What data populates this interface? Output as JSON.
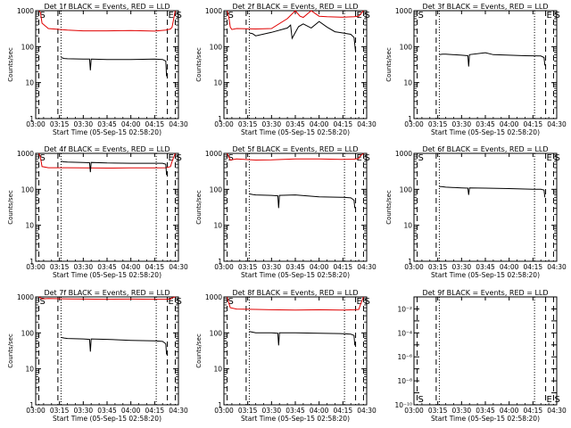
{
  "figure": {
    "background": "#ffffff",
    "black": "#000000",
    "red": "#e00000"
  },
  "chart_data": [
    {
      "type": "line",
      "title": "Det 1f BLACK = Events, RED = LLD",
      "xlabel": "Start Time (05-Sep-15 02:58:20)",
      "ylabel": "Counts/sec",
      "yscale": "log",
      "ylim": [
        1,
        1000
      ],
      "yticks": [
        "1",
        "10",
        "100",
        "1000"
      ],
      "xticks": [
        "03:00",
        "03:15",
        "03:30",
        "03:45",
        "04:00",
        "04:15",
        "04:30"
      ],
      "markers": [
        "S",
        "E",
        "S"
      ],
      "series": [
        {
          "color": "#e00000",
          "x": [
            2,
            3,
            4,
            8,
            20,
            30,
            45,
            60,
            75,
            82,
            85,
            86,
            88
          ],
          "y": [
            1000,
            900,
            450,
            320,
            290,
            275,
            275,
            280,
            270,
            290,
            310,
            350,
            1000
          ]
        },
        {
          "color": "#000000",
          "x": [
            16,
            18,
            20,
            30,
            34,
            34.5,
            35,
            45,
            60,
            75,
            80,
            82,
            82.5
          ],
          "y": [
            50,
            47,
            46,
            45,
            45,
            22,
            45,
            44,
            44,
            45,
            44,
            40,
            15
          ]
        }
      ]
    },
    {
      "type": "line",
      "title": "Det 2f BLACK = Events, RED = LLD",
      "xlabel": "Start Time (05-Sep-15 02:58:20)",
      "ylabel": "Counts/sec",
      "yscale": "log",
      "ylim": [
        1,
        1000
      ],
      "yticks": [
        "1",
        "10",
        "100",
        "1000"
      ],
      "xticks": [
        "03:00",
        "03:15",
        "03:30",
        "03:45",
        "04:00",
        "04:15",
        "04:30"
      ],
      "markers": [
        "S",
        "E",
        "S"
      ],
      "series": [
        {
          "color": "#e00000",
          "x": [
            2,
            3,
            4,
            5,
            8,
            20,
            30,
            40,
            45,
            48,
            50,
            55,
            60,
            65,
            75,
            82,
            85,
            88
          ],
          "y": [
            1000,
            700,
            350,
            300,
            320,
            310,
            320,
            600,
            1000,
            700,
            650,
            1100,
            700,
            680,
            660,
            680,
            700,
            1000
          ]
        },
        {
          "color": "#000000",
          "x": [
            16,
            18,
            20,
            30,
            40,
            42,
            43,
            47,
            50,
            55,
            60,
            65,
            70,
            75,
            80,
            82,
            83
          ],
          "y": [
            240,
            230,
            200,
            250,
            330,
            400,
            170,
            360,
            430,
            330,
            500,
            350,
            260,
            240,
            220,
            180,
            70
          ]
        }
      ]
    },
    {
      "type": "line",
      "title": "Det 3f BLACK = Events, RED = LLD",
      "xlabel": "Start Time (05-Sep-15 02:58:20)",
      "ylabel": "Counts/sec",
      "yscale": "log",
      "ylim": [
        1,
        1000
      ],
      "yticks": [
        "1",
        "10",
        "100",
        "1000"
      ],
      "xticks": [
        "03:00",
        "03:15",
        "03:30",
        "03:45",
        "04:00",
        "04:15",
        "04:30"
      ],
      "markers": [
        "S",
        "E",
        "S"
      ],
      "series": [
        {
          "color": "#000000",
          "x": [
            16,
            18,
            20,
            30,
            34,
            34.5,
            35,
            45,
            50,
            60,
            70,
            80,
            82,
            82.5
          ],
          "y": [
            60,
            62,
            62,
            58,
            56,
            28,
            60,
            68,
            60,
            58,
            56,
            55,
            50,
            30
          ]
        }
      ]
    },
    {
      "type": "line",
      "title": "Det 4f BLACK = Events, RED = LLD",
      "xlabel": "Start Time (05-Sep-15 02:58:20)",
      "ylabel": "Counts/sec",
      "yscale": "log",
      "ylim": [
        1,
        1000
      ],
      "yticks": [
        "1",
        "10",
        "100",
        "1000"
      ],
      "xticks": [
        "03:00",
        "03:15",
        "03:30",
        "03:45",
        "04:00",
        "04:15",
        "04:30"
      ],
      "markers": [
        "S",
        "E",
        "S"
      ],
      "series": [
        {
          "color": "#e00000",
          "x": [
            2,
            3,
            4,
            8,
            20,
            30,
            45,
            60,
            75,
            82,
            85,
            86,
            88
          ],
          "y": [
            1000,
            800,
            430,
            400,
            400,
            395,
            390,
            395,
            395,
            400,
            430,
            600,
            1000
          ]
        },
        {
          "color": "#000000",
          "x": [
            16,
            18,
            20,
            30,
            34,
            34.5,
            35,
            45,
            60,
            75,
            80,
            82,
            82.5
          ],
          "y": [
            600,
            580,
            570,
            560,
            550,
            300,
            560,
            540,
            530,
            530,
            530,
            500,
            250
          ]
        }
      ]
    },
    {
      "type": "line",
      "title": "Det 5f BLACK = Events, RED = LLD",
      "xlabel": "Start Time (05-Sep-15 02:58:20)",
      "ylabel": "Counts/sec",
      "yscale": "log",
      "ylim": [
        1,
        1000
      ],
      "yticks": [
        "1",
        "10",
        "100",
        "1000"
      ],
      "xticks": [
        "03:00",
        "03:15",
        "03:30",
        "03:45",
        "04:00",
        "04:15",
        "04:30"
      ],
      "markers": [
        "S",
        "E",
        "S"
      ],
      "series": [
        {
          "color": "#e00000",
          "x": [
            2,
            3,
            4,
            8,
            20,
            30,
            45,
            60,
            75,
            82,
            85,
            86,
            88
          ],
          "y": [
            1000,
            800,
            650,
            700,
            650,
            660,
            700,
            700,
            680,
            690,
            720,
            850,
            1000
          ]
        },
        {
          "color": "#000000",
          "x": [
            16,
            18,
            20,
            30,
            34,
            34.5,
            35,
            45,
            60,
            75,
            80,
            82,
            82.5
          ],
          "y": [
            75,
            72,
            70,
            68,
            66,
            30,
            68,
            70,
            62,
            60,
            58,
            50,
            30
          ]
        }
      ]
    },
    {
      "type": "line",
      "title": "Det 6f BLACK = Events, RED = LLD",
      "xlabel": "Start Time (05-Sep-15 02:58:20)",
      "ylabel": "Counts/sec",
      "yscale": "log",
      "ylim": [
        1,
        1000
      ],
      "yticks": [
        "1",
        "10",
        "100",
        "1000"
      ],
      "xticks": [
        "03:00",
        "03:15",
        "03:30",
        "03:45",
        "04:00",
        "04:15",
        "04:30"
      ],
      "markers": [
        "S",
        "E",
        "S"
      ],
      "series": [
        {
          "color": "#000000",
          "x": [
            16,
            18,
            20,
            30,
            34,
            34.5,
            35,
            45,
            60,
            75,
            80,
            82,
            82.5
          ],
          "y": [
            120,
            118,
            115,
            110,
            108,
            70,
            110,
            108,
            105,
            100,
            100,
            95,
            60
          ]
        }
      ]
    },
    {
      "type": "line",
      "title": "Det 7f BLACK = Events, RED = LLD",
      "xlabel": "Start Time (05-Sep-15 02:58:20)",
      "ylabel": "Counts/sec",
      "yscale": "log",
      "ylim": [
        1,
        1000
      ],
      "yticks": [
        "1",
        "10",
        "100",
        "1000"
      ],
      "xticks": [
        "03:00",
        "03:15",
        "03:30",
        "03:45",
        "04:00",
        "04:15",
        "04:30"
      ],
      "markers": [
        "S",
        "E",
        "S"
      ],
      "series": [
        {
          "color": "#e00000",
          "x": [
            2,
            3,
            4,
            8,
            20,
            30,
            45,
            60,
            75,
            82,
            85,
            86,
            88
          ],
          "y": [
            1000,
            950,
            880,
            900,
            880,
            870,
            860,
            870,
            860,
            860,
            880,
            950,
            1000
          ]
        },
        {
          "color": "#000000",
          "x": [
            16,
            18,
            20,
            30,
            34,
            34.5,
            35,
            45,
            60,
            75,
            80,
            82,
            82.5
          ],
          "y": [
            75,
            72,
            70,
            68,
            66,
            30,
            68,
            66,
            62,
            60,
            58,
            50,
            25
          ]
        }
      ]
    },
    {
      "type": "line",
      "title": "Det 8f BLACK = Events, RED = LLD",
      "xlabel": "Start Time (05-Sep-15 02:58:20)",
      "ylabel": "Counts/sec",
      "yscale": "log",
      "ylim": [
        1,
        1000
      ],
      "yticks": [
        "1",
        "10",
        "100",
        "1000"
      ],
      "xticks": [
        "03:00",
        "03:15",
        "03:30",
        "03:45",
        "04:00",
        "04:15",
        "04:30"
      ],
      "markers": [
        "S",
        "E",
        "S"
      ],
      "series": [
        {
          "color": "#e00000",
          "x": [
            2,
            3,
            4,
            8,
            20,
            30,
            45,
            60,
            75,
            82,
            85,
            86,
            88
          ],
          "y": [
            1000,
            700,
            500,
            460,
            450,
            440,
            430,
            440,
            430,
            440,
            450,
            600,
            1000
          ]
        },
        {
          "color": "#000000",
          "x": [
            16,
            18,
            20,
            30,
            34,
            34.5,
            35,
            45,
            60,
            75,
            80,
            82,
            82.5
          ],
          "y": [
            110,
            105,
            100,
            100,
            98,
            45,
            100,
            100,
            98,
            95,
            92,
            85,
            45
          ]
        }
      ]
    },
    {
      "type": "line",
      "title": "Det 9f BLACK = Events, RED = LLD",
      "xlabel": "Start Time (05-Sep-15 02:58:20)",
      "ylabel": "",
      "yscale": "log",
      "ylim": [
        1e-10,
        0.1
      ],
      "yticks": [
        "10⁻¹⁰",
        "10⁻⁸",
        "10⁻⁶",
        "10⁻⁴",
        "10⁻²"
      ],
      "xticks": [
        "03:00",
        "03:15",
        "03:30",
        "03:45",
        "04:00",
        "04:15",
        "04:30"
      ],
      "markers": [
        "S",
        "E",
        "S"
      ],
      "series": []
    }
  ]
}
